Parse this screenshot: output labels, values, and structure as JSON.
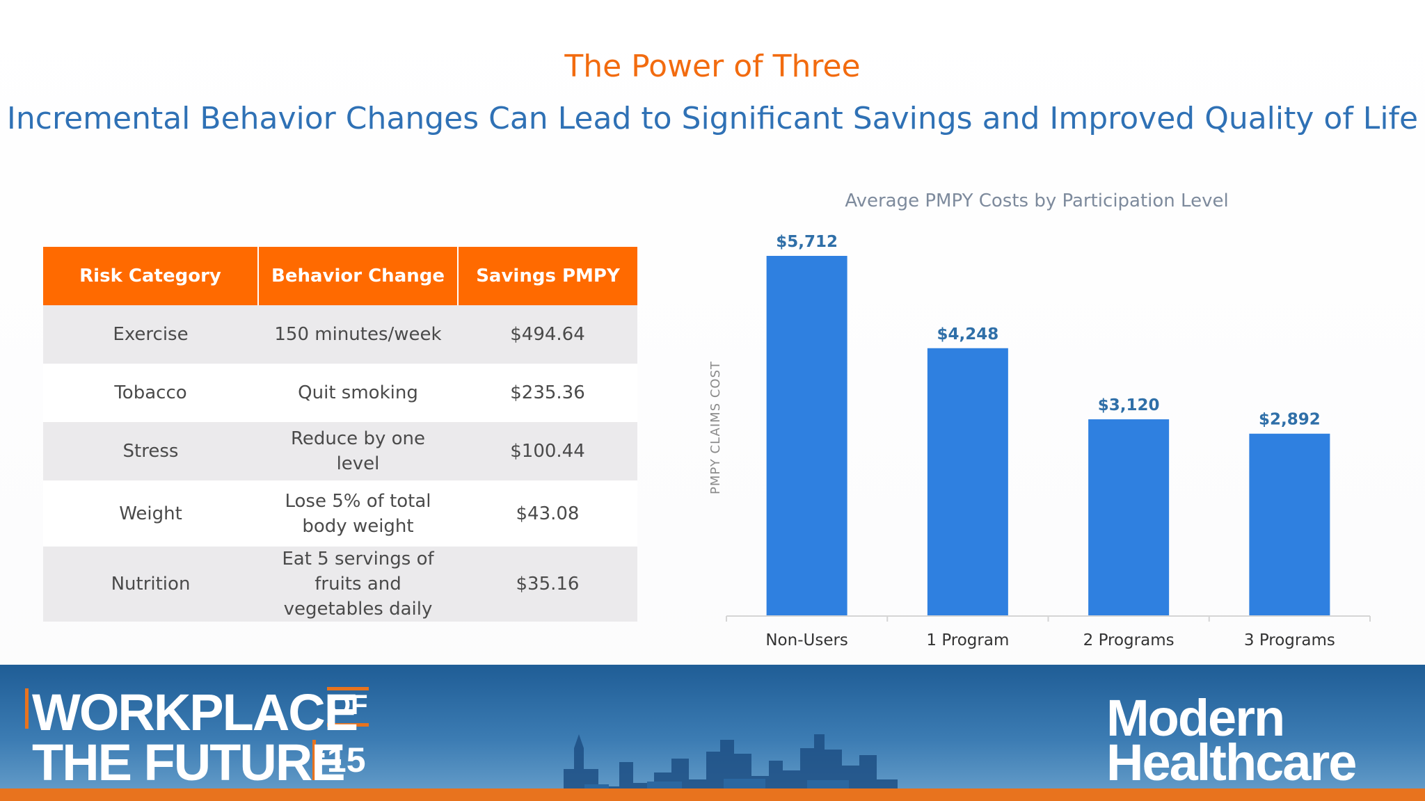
{
  "header": {
    "title": "The Power of Three",
    "subtitle": "Incremental Behavior Changes Can Lead to Significant Savings and Improved Quality of Life"
  },
  "table": {
    "headers": [
      "Risk Category",
      "Behavior Change",
      "Savings PMPY"
    ],
    "rows": [
      {
        "category": "Exercise",
        "change": "150 minutes/week",
        "savings": "$494.64"
      },
      {
        "category": "Tobacco",
        "change": "Quit smoking",
        "savings": "$235.36"
      },
      {
        "category": "Stress",
        "change": "Reduce by one level",
        "savings": "$100.44"
      },
      {
        "category": "Weight",
        "change": "Lose 5% of total body weight",
        "savings": "$43.08"
      },
      {
        "category": "Nutrition",
        "change": "Eat 5 servings of fruits and vegetables daily",
        "savings": "$35.16"
      }
    ]
  },
  "chart_data": {
    "type": "bar",
    "title": "Average PMPY Costs by Participation Level",
    "xlabel": "",
    "ylabel": "PMPY CLAIMS COST",
    "categories": [
      "Non-Users",
      "1 Program",
      "2 Programs",
      "3 Programs"
    ],
    "values": [
      5712,
      4248,
      3120,
      2892
    ],
    "data_labels": [
      "$5,712",
      "$4,248",
      "$3,120",
      "$2,892"
    ],
    "ylim": [
      0,
      5712
    ],
    "grid": false,
    "legend": "none",
    "bar_color": "#2f80e0"
  },
  "footer": {
    "event_line1": "WORKPLACE",
    "event_of": "OF",
    "event_line2": "THE FUTURE",
    "event_year": "‘15",
    "brand_line1": "Modern",
    "brand_line2": "Healthcare",
    "accent_color": "#e8731e"
  }
}
